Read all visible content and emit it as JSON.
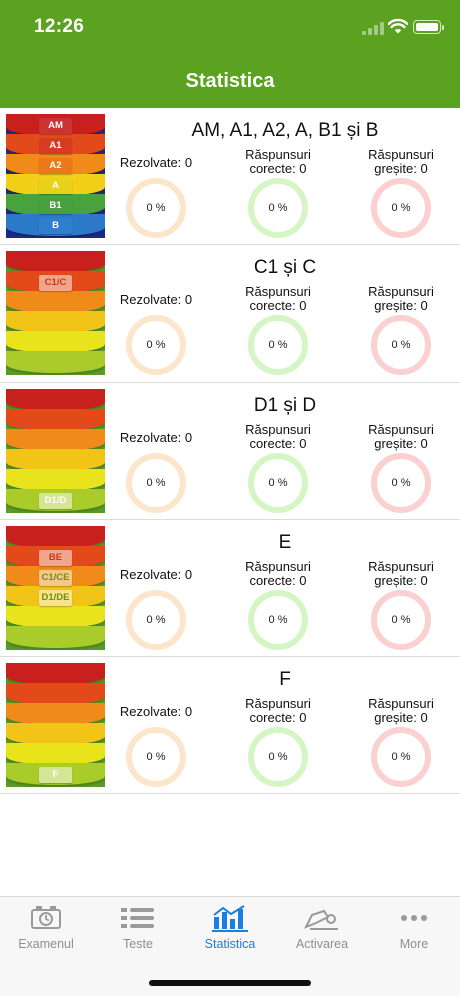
{
  "status": {
    "time": "12:26"
  },
  "nav": {
    "title": "Statistica"
  },
  "colors": {
    "accent": "#5aa21f",
    "active_tab": "#1a7fe0",
    "ring_resolved": "#fbe6cc",
    "ring_correct": "#d6f5c5",
    "ring_wrong": "#fbd0d0"
  },
  "labels": {
    "resolved": "Rezolvate: 0",
    "correct_1": "Răspunsuri",
    "correct_2": "corecte: 0",
    "wrong_1": "Răspunsuri",
    "wrong_2": "greșite: 0"
  },
  "categories": [
    {
      "title": "AM, A1, A2, A, B1 și B",
      "tabs": [
        "AM",
        "A1",
        "A2",
        "A",
        "B1",
        "B"
      ],
      "resolved_pct": "0 %",
      "correct_pct": "0 %",
      "wrong_pct": "0 %"
    },
    {
      "title": "C1 și C",
      "tabs": [
        "C1/C"
      ],
      "resolved_pct": "0 %",
      "correct_pct": "0 %",
      "wrong_pct": "0 %"
    },
    {
      "title": "D1 și D",
      "tabs": [
        "D1/D"
      ],
      "resolved_pct": "0 %",
      "correct_pct": "0 %",
      "wrong_pct": "0 %"
    },
    {
      "title": "E",
      "tabs": [
        "BE",
        "C1/CE",
        "D1/DE"
      ],
      "resolved_pct": "0 %",
      "correct_pct": "0 %",
      "wrong_pct": "0 %"
    },
    {
      "title": "F",
      "tabs": [
        "F"
      ],
      "resolved_pct": "0 %",
      "correct_pct": "0 %",
      "wrong_pct": "0 %"
    }
  ],
  "tabbar": [
    {
      "label": "Examenul",
      "icon": "exam-timer-icon"
    },
    {
      "label": "Teste",
      "icon": "list-icon"
    },
    {
      "label": "Statistica",
      "icon": "bar-chart-icon",
      "active": true
    },
    {
      "label": "Activarea",
      "icon": "activation-key-icon"
    },
    {
      "label": "More",
      "icon": "more-dots-icon"
    }
  ]
}
